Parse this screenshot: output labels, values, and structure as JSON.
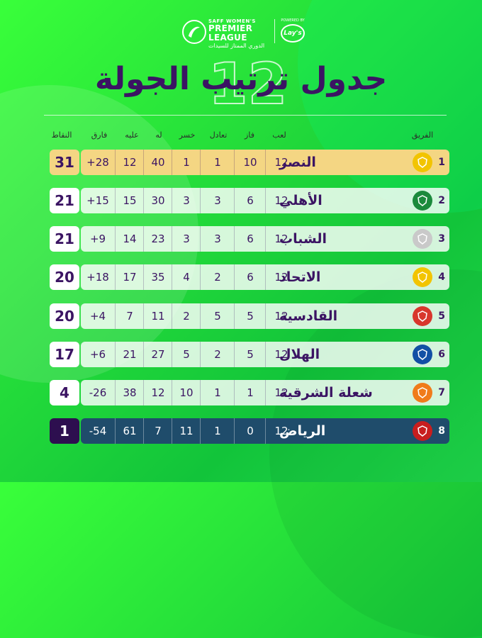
{
  "header": {
    "league_small": "SAFF WOMEN'S",
    "league_big": "PREMIER LEAGUE",
    "league_ar": "الدوري الممتاز للسيدات",
    "sponsor_small": "POWERED BY",
    "sponsor_logo": "Lay's"
  },
  "title": {
    "text": "جدول ترتيب الجولة",
    "round": "12"
  },
  "columns": {
    "team": "الفريق",
    "played": "لعب",
    "won": "فاز",
    "drawn": "تعادل",
    "lost": "خسر",
    "for": "له",
    "against": "عليه",
    "diff": "فارق",
    "points": "النقاط"
  },
  "rows": [
    {
      "rank": "1",
      "team": "النصر",
      "played": "12",
      "won": "10",
      "drawn": "1",
      "lost": "1",
      "for": "40",
      "against": "12",
      "diff": "+28",
      "points": "31",
      "badge_color": "#f2c400"
    },
    {
      "rank": "2",
      "team": "الأهلي",
      "played": "12",
      "won": "6",
      "drawn": "3",
      "lost": "3",
      "for": "30",
      "against": "15",
      "diff": "+15",
      "points": "21",
      "badge_color": "#1b8a3c"
    },
    {
      "rank": "3",
      "team": "الشباب",
      "played": "12",
      "won": "6",
      "drawn": "3",
      "lost": "3",
      "for": "23",
      "against": "14",
      "diff": "+9",
      "points": "21",
      "badge_color": "#c9c9c9"
    },
    {
      "rank": "4",
      "team": "الاتحاد",
      "played": "12",
      "won": "6",
      "drawn": "2",
      "lost": "4",
      "for": "35",
      "against": "17",
      "diff": "+18",
      "points": "20",
      "badge_color": "#f2c400"
    },
    {
      "rank": "5",
      "team": "القادسية",
      "played": "12",
      "won": "5",
      "drawn": "5",
      "lost": "2",
      "for": "11",
      "against": "7",
      "diff": "+4",
      "points": "20",
      "badge_color": "#d8372c"
    },
    {
      "rank": "6",
      "team": "الهلال",
      "played": "12",
      "won": "5",
      "drawn": "2",
      "lost": "5",
      "for": "27",
      "against": "21",
      "diff": "+6",
      "points": "17",
      "badge_color": "#1250a5"
    },
    {
      "rank": "7",
      "team": "شعلة الشرقية",
      "played": "12",
      "won": "1",
      "drawn": "1",
      "lost": "10",
      "for": "12",
      "against": "38",
      "diff": "-26",
      "points": "4",
      "badge_color": "#f07b1a"
    },
    {
      "rank": "8",
      "team": "الرياض",
      "played": "12",
      "won": "0",
      "drawn": "1",
      "lost": "11",
      "for": "7",
      "against": "61",
      "diff": "-54",
      "points": "1",
      "badge_color": "#c81e1e"
    }
  ]
}
